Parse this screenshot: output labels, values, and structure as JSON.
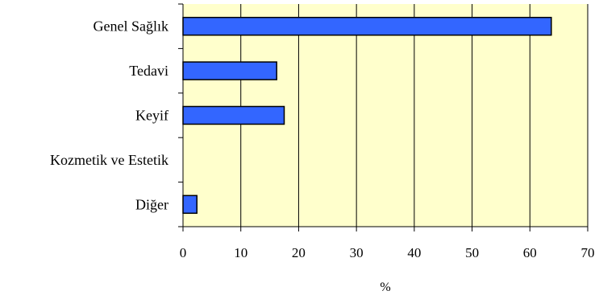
{
  "chart_data": {
    "type": "bar",
    "orientation": "horizontal",
    "categories": [
      "Genel Sağlık",
      "Tedavi",
      "Keyif",
      "Kozmetik ve Estetik",
      "Diğer"
    ],
    "values": [
      63.7,
      16.2,
      17.5,
      0,
      2.4
    ],
    "title": "",
    "xlabel": "%",
    "ylabel": "",
    "xlim": [
      0,
      70
    ],
    "xticks": [
      0,
      10,
      20,
      30,
      40,
      50,
      60,
      70
    ],
    "xtick_labels": [
      "0",
      "10",
      "20",
      "30",
      "40",
      "50",
      "60",
      "70"
    ],
    "grid": "vertical",
    "legend": "none",
    "colors": {
      "plot_background": "#ffffcc",
      "bar_fill": "#3366ff",
      "bar_stroke": "#000000",
      "gridline": "#000000"
    }
  }
}
